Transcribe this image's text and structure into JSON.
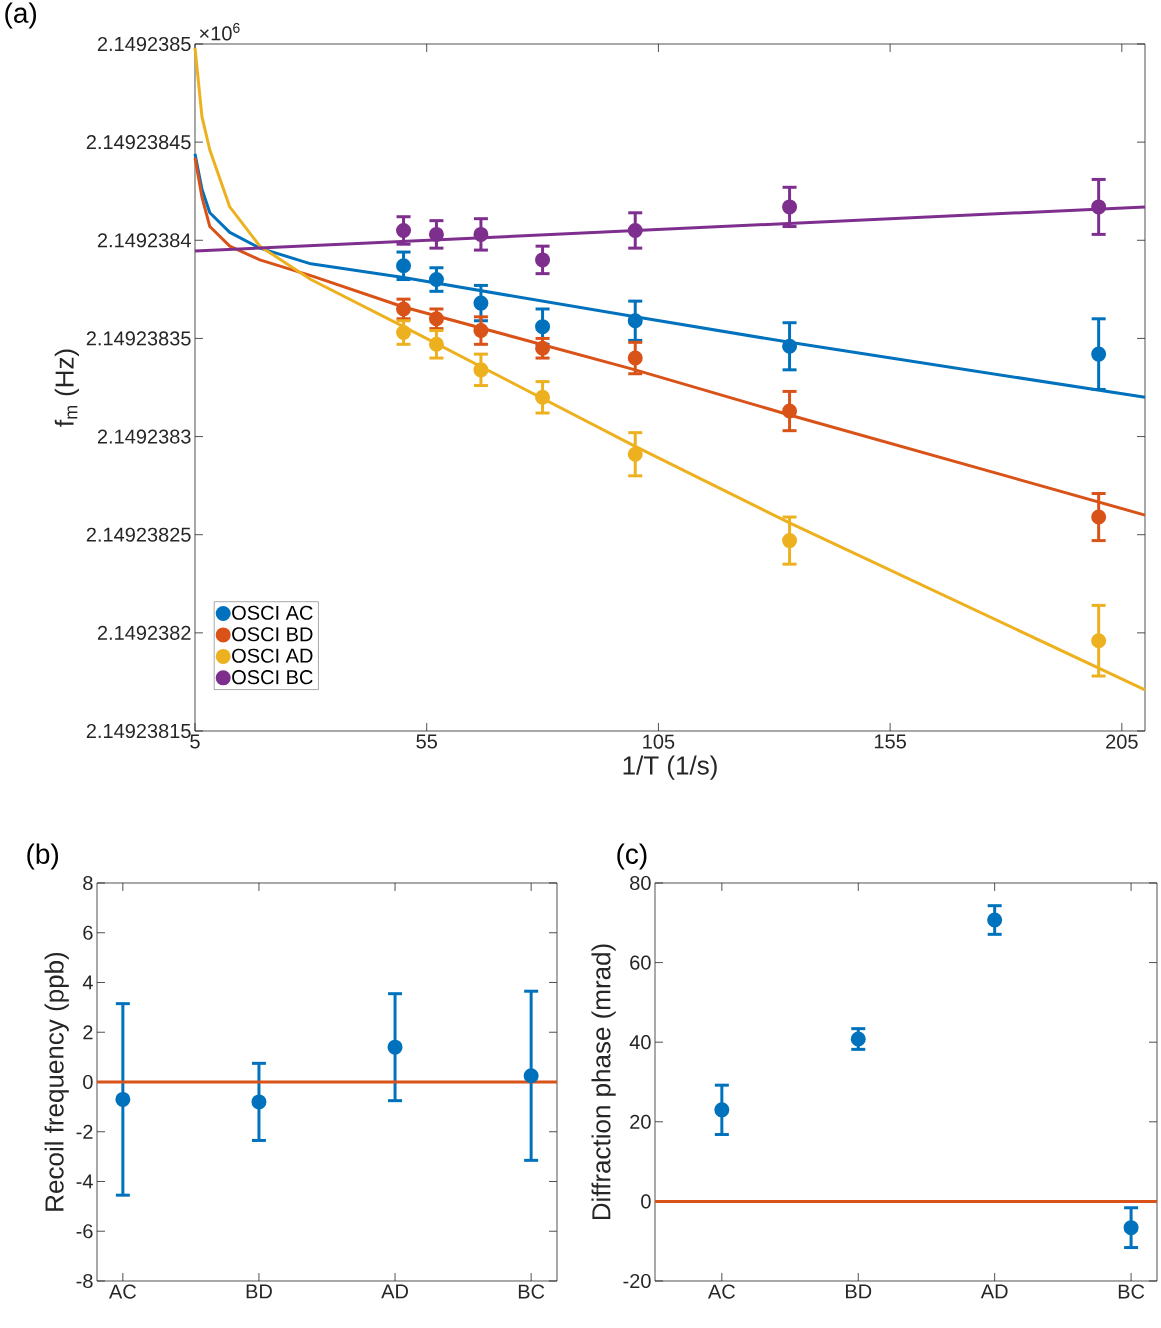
{
  "chart_data": [
    {
      "type": "scatter",
      "title": "(a)",
      "xlabel": "1/T (1/s)",
      "ylabel": "f$_{m}$ (Hz)",
      "annotations": [
        "×10$^{6}$"
      ],
      "xlim": [
        5,
        210
      ],
      "xticks": [
        5,
        55,
        105,
        155,
        205
      ],
      "ylim": [
        2.14923815,
        2.1492385
      ],
      "yticks": [
        2.14923815,
        2.1492382,
        2.14923825,
        2.1492383,
        2.14923835,
        2.1492384,
        2.14923845,
        2.1492385
      ],
      "legend": "bottom left",
      "series": [
        {
          "name": "OSCI AC",
          "type": "scatter",
          "marker": "circle",
          "color": "#0072bd",
          "x": [
            50,
            57.1,
            66.7,
            80,
            100,
            133.3,
            200
          ],
          "values": [
            2.149238387,
            2.14923838,
            2.149238368,
            2.149238356,
            2.149238359,
            2.149238346,
            2.149238342
          ],
          "errors": [
            7e-09,
            6e-09,
            9e-09,
            9e-09,
            1e-08,
            1.2e-08,
            1.8e-08
          ]
        },
        {
          "name": "OSCI BD",
          "type": "scatter",
          "marker": "circle",
          "color": "#d95319",
          "x": [
            50,
            57.1,
            66.7,
            80,
            100,
            133.3,
            200
          ],
          "values": [
            2.149238365,
            2.14923836,
            2.149238354,
            2.149238345,
            2.14923834,
            2.149238313,
            2.149238259
          ],
          "errors": [
            5e-09,
            5e-09,
            7e-09,
            5e-09,
            8e-09,
            1e-08,
            1.2e-08
          ]
        },
        {
          "name": "OSCI AD",
          "type": "scatter",
          "marker": "circle",
          "color": "#edb120",
          "x": [
            50,
            57.1,
            66.7,
            80,
            100,
            133.3,
            200
          ],
          "values": [
            2.149238353,
            2.149238347,
            2.149238334,
            2.14923832,
            2.149238291,
            2.149238247,
            2.149238196
          ],
          "errors": [
            6e-09,
            7e-09,
            8e-09,
            8e-09,
            1.1e-08,
            1.2e-08,
            1.8e-08
          ]
        },
        {
          "name": "OSCI BC",
          "type": "scatter",
          "marker": "circle",
          "color": "#7e2f8e",
          "x": [
            50,
            57.1,
            66.7,
            80,
            100,
            133.3,
            200
          ],
          "values": [
            2.149238405,
            2.149238403,
            2.149238403,
            2.14923839,
            2.149238405,
            2.149238417,
            2.149238417
          ],
          "errors": [
            7e-09,
            7e-09,
            8e-09,
            7e-09,
            9e-09,
            1e-08,
            1.4e-08
          ]
        },
        {
          "type": "line",
          "color": "#0072bd",
          "x": [
            5,
            6.5,
            8.2,
            12.5,
            19,
            30,
            50,
            100,
            133.3,
            210
          ],
          "values": [
            2.149238444,
            2.149238426,
            2.149238414,
            2.149238404,
            2.149238396,
            2.149238388,
            2.149238381,
            2.149238361,
            2.149238348,
            2.14923832
          ]
        },
        {
          "type": "line",
          "color": "#d95319",
          "x": [
            5,
            6.5,
            8.2,
            12.5,
            19,
            30,
            50,
            100,
            133.3,
            210
          ],
          "values": [
            2.149238442,
            2.149238422,
            2.149238407,
            2.149238397,
            2.14923839,
            2.149238382,
            2.149238366,
            2.149238334,
            2.149238311,
            2.14923826
          ]
        },
        {
          "type": "line",
          "color": "#edb120",
          "x": [
            5,
            6.5,
            8.2,
            12.5,
            19,
            30,
            50,
            100,
            133.3,
            210
          ],
          "values": [
            2.149238498,
            2.149238463,
            2.149238446,
            2.149238417,
            2.149238397,
            2.14923838,
            2.149238356,
            2.149238295,
            2.149238256,
            2.149238171
          ]
        },
        {
          "type": "line",
          "color": "#7e2f8e",
          "x": [
            5,
            210
          ],
          "values": [
            2.1492383945,
            2.149238417
          ]
        }
      ]
    },
    {
      "type": "scatter",
      "title": "(b)",
      "ylabel": "Recoil frequency (ppb)",
      "categories": [
        "AC",
        "BD",
        "AD",
        "BC"
      ],
      "values": [
        -0.7,
        -0.8,
        1.4,
        0.25
      ],
      "errors": [
        3.85,
        1.55,
        2.15,
        3.4
      ],
      "color": "#0072bd",
      "marker": "circle",
      "ylim": [
        -8,
        8
      ],
      "yticks": [
        -8,
        -6,
        -4,
        -2,
        0,
        2,
        4,
        6,
        8
      ],
      "ref_lines": [
        {
          "axis": "y",
          "value": 0,
          "color": "#d95319"
        }
      ]
    },
    {
      "type": "scatter",
      "title": "(c)",
      "ylabel": "Diffraction phase (mrad)",
      "categories": [
        "AC",
        "BD",
        "AD",
        "BC"
      ],
      "values": [
        23,
        40.8,
        70.7,
        -6.6
      ],
      "errors": [
        6.2,
        2.6,
        3.6,
        5.0
      ],
      "color": "#0072bd",
      "marker": "circle",
      "ylim": [
        -20,
        80
      ],
      "yticks": [
        -20,
        0,
        20,
        40,
        60,
        80
      ],
      "ref_lines": [
        {
          "axis": "y",
          "value": 0,
          "color": "#d95319"
        }
      ]
    }
  ]
}
